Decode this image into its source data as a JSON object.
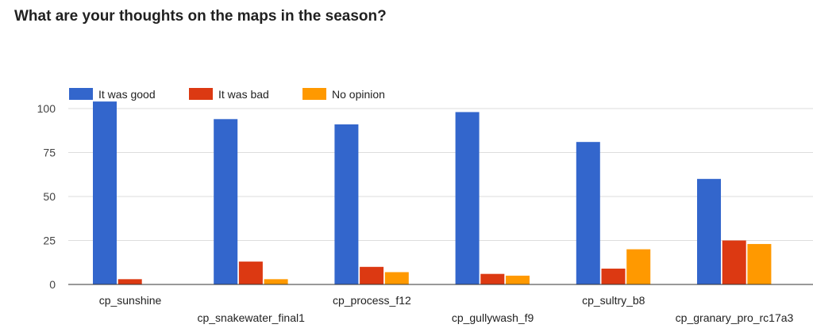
{
  "chart_data": {
    "type": "bar",
    "title": "What are your thoughts on the maps in the season?",
    "categories": [
      "cp_sunshine",
      "cp_snakewater_final1",
      "cp_process_f12",
      "cp_gullywash_f9",
      "cp_sultry_b8",
      "cp_granary_pro_rc17a3"
    ],
    "series": [
      {
        "name": "It was good",
        "color": "#3366cc",
        "values": [
          104,
          94,
          91,
          98,
          81,
          60
        ]
      },
      {
        "name": "It was bad",
        "color": "#dc3912",
        "values": [
          3,
          13,
          10,
          6,
          9,
          25
        ]
      },
      {
        "name": "No opinion",
        "color": "#ff9900",
        "values": [
          0,
          3,
          7,
          5,
          20,
          23
        ]
      }
    ],
    "yticks": [
      0,
      25,
      50,
      75,
      100
    ],
    "ylim": [
      0,
      105
    ],
    "grid": true,
    "legend_position": "top-left"
  }
}
